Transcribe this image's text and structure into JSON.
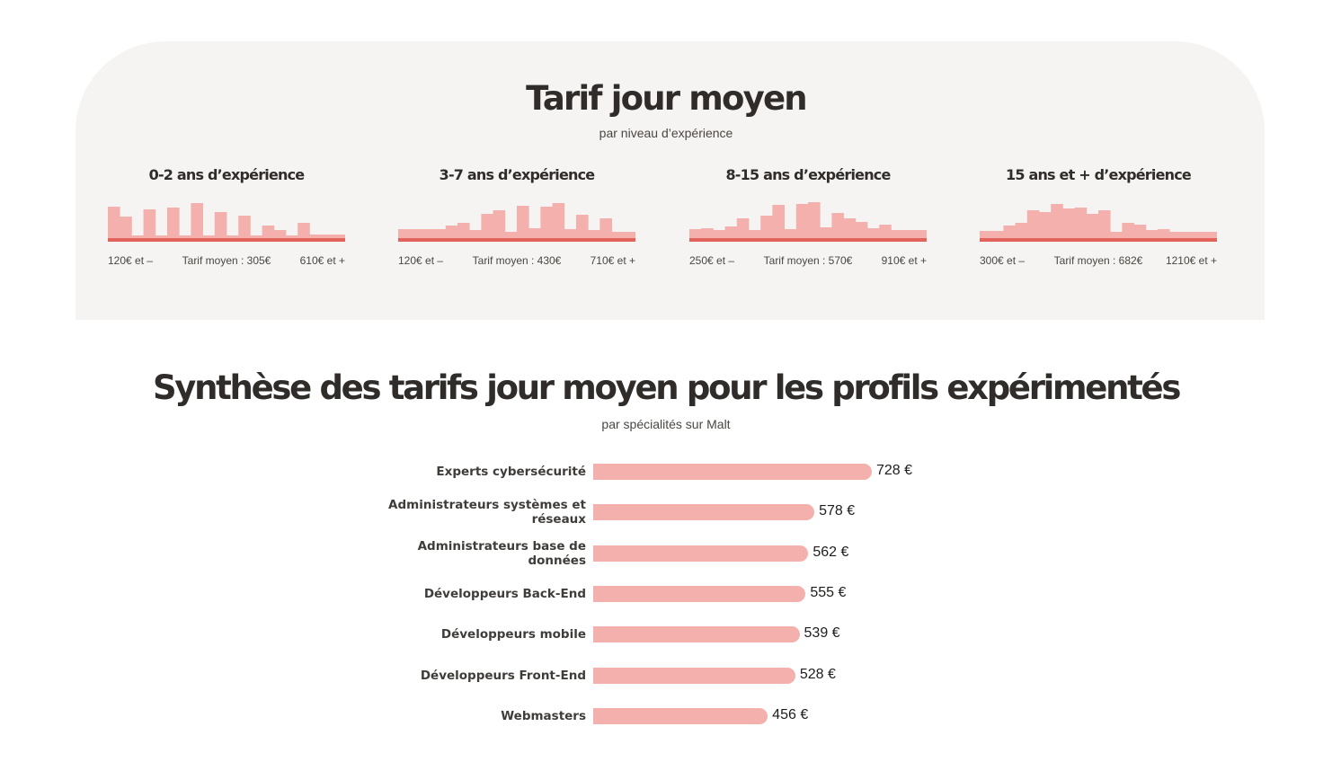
{
  "section1": {
    "title": "Tarif jour moyen",
    "subtitle": "par niveau d’expérience"
  },
  "section2": {
    "title": "Synthèse des tarifs jour moyen pour les profils expérimentés",
    "subtitle": "par spécialités sur Malt"
  },
  "colors": {
    "bar": "#f4b0ac",
    "baseline": "#e2635b",
    "panel_bg": "#f5f4f2"
  },
  "chart_data": [
    {
      "type": "bar",
      "title": "0-2 ans d’expérience",
      "values": [
        35,
        24,
        3,
        32,
        3,
        34,
        3,
        39,
        3,
        29,
        3,
        25,
        3,
        14,
        9,
        3,
        17,
        4,
        4,
        4
      ],
      "ylim": [
        0,
        40
      ],
      "min_label": "120€ et –",
      "avg_label": "Tarif moyen : 305€",
      "max_label": "610€ et +"
    },
    {
      "type": "bar",
      "title": "3-7 ans d’expérience",
      "values": [
        10,
        10,
        10,
        10,
        14,
        17,
        9,
        27,
        31,
        7,
        36,
        11,
        35,
        39,
        10,
        26,
        9,
        22,
        7,
        7
      ],
      "ylim": [
        0,
        40
      ],
      "min_label": "120€ et –",
      "avg_label": "Tarif moyen : 430€",
      "max_label": "710€ et +"
    },
    {
      "type": "bar",
      "title": "8-15 ans d’expérience",
      "values": [
        10,
        11,
        9,
        13,
        22,
        9,
        25,
        37,
        10,
        38,
        40,
        12,
        28,
        22,
        18,
        11,
        15,
        9,
        9,
        9
      ],
      "ylim": [
        0,
        40
      ],
      "min_label": "250€ et –",
      "avg_label": "Tarif moyen : 570€",
      "max_label": "910€ et +"
    },
    {
      "type": "bar",
      "title": "15 ans et + d’expérience",
      "values": [
        8,
        8,
        14,
        17,
        31,
        29,
        38,
        33,
        34,
        27,
        31,
        7,
        17,
        15,
        9,
        10,
        7,
        7,
        7,
        7
      ],
      "ylim": [
        0,
        40
      ],
      "min_label": "300€ et –",
      "avg_label": "Tarif moyen : 682€",
      "max_label": "1210€ et +"
    },
    {
      "type": "bar",
      "orientation": "horizontal",
      "categories": [
        "Experts cybersécurité",
        "Administrateurs systèmes et réseaux",
        "Administrateurs base de données",
        "Développeurs Back-End",
        "Développeurs mobile",
        "Développeurs Front-End",
        "Webmasters"
      ],
      "values": [
        728,
        578,
        562,
        555,
        539,
        528,
        456
      ],
      "value_labels": [
        "728 €",
        "578 €",
        "562 €",
        "555 €",
        "539 €",
        "528 €",
        "456 €"
      ]
    }
  ]
}
